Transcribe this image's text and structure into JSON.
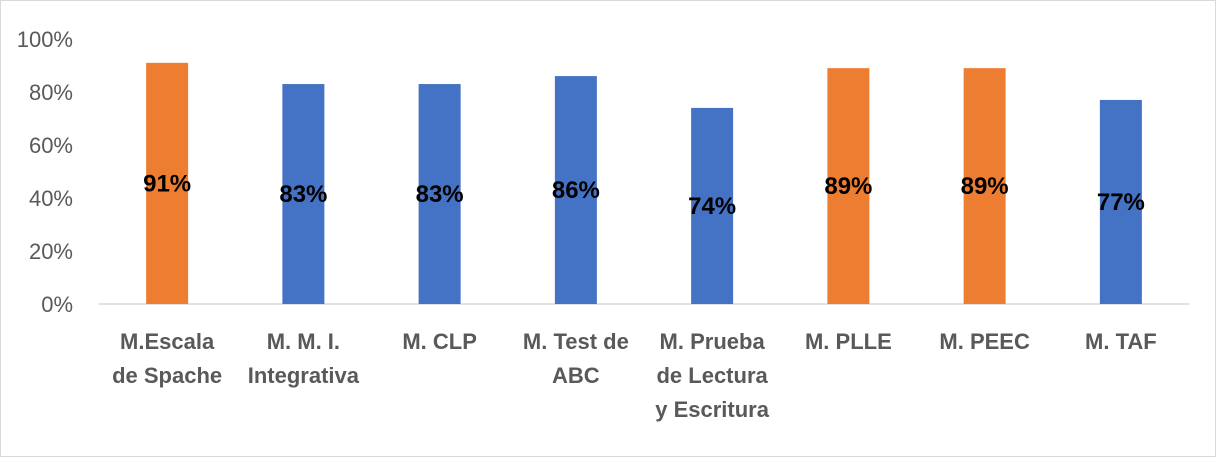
{
  "chart_data": {
    "type": "bar",
    "categories": [
      [
        "M.Escala",
        "de Spache"
      ],
      [
        "M. M. I.",
        "Integrativa"
      ],
      [
        "M. CLP"
      ],
      [
        "M. Test de",
        "ABC"
      ],
      [
        "M. Prueba",
        "de Lectura",
        "y  Escritura"
      ],
      [
        "M. PLLE"
      ],
      [
        "M. PEEC"
      ],
      [
        "M. TAF"
      ]
    ],
    "values": [
      91,
      83,
      83,
      86,
      74,
      89,
      89,
      77
    ],
    "data_labels": [
      "91%",
      "83%",
      "83%",
      "86%",
      "74%",
      "89%",
      "89%",
      "77%"
    ],
    "bar_colors": [
      "#ED7D31",
      "#4472C4",
      "#4472C4",
      "#4472C4",
      "#4472C4",
      "#ED7D31",
      "#ED7D31",
      "#4472C4"
    ],
    "y_ticks": [
      "0%",
      "20%",
      "40%",
      "60%",
      "80%",
      "100%"
    ],
    "ylim": [
      0,
      100
    ],
    "grid": false,
    "title": "",
    "xlabel": "",
    "ylabel": ""
  }
}
